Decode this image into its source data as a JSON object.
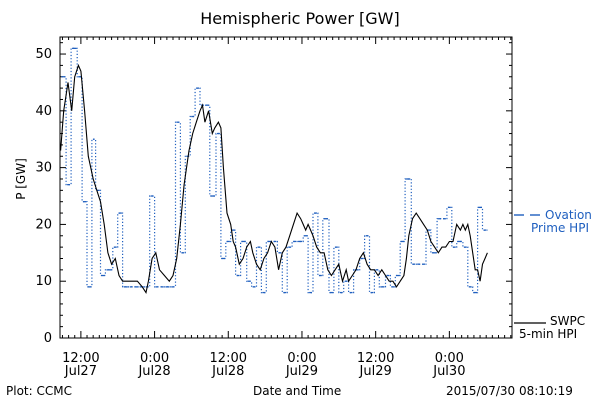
{
  "chart_data": {
    "type": "line",
    "title": "Hemispheric Power [GW]",
    "xlabel": "Date and Time",
    "ylabel": "P [GW]",
    "ylim": [
      0,
      53
    ],
    "y_ticks": [
      0,
      10,
      20,
      30,
      40,
      50
    ],
    "x_ticks": [
      {
        "time": "12:00",
        "date": "Jul27",
        "hours": 12
      },
      {
        "time": "0:00",
        "date": "Jul28",
        "hours": 24
      },
      {
        "time": "12:00",
        "date": "Jul28",
        "hours": 36
      },
      {
        "time": "0:00",
        "date": "Jul29",
        "hours": 48
      },
      {
        "time": "12:00",
        "date": "Jul29",
        "hours": 60
      },
      {
        "time": "0:00",
        "date": "Jul30",
        "hours": 72
      }
    ],
    "xlim_hours": [
      8.6,
      82.2
    ],
    "grid": false,
    "series": [
      {
        "name": "Ovation Prime HPI",
        "color": "#1f5fbf",
        "style": "dotted-step",
        "points": [
          [
            8.8,
            46
          ],
          [
            9.6,
            27
          ],
          [
            10.4,
            51
          ],
          [
            11.4,
            46
          ],
          [
            12.2,
            24
          ],
          [
            13.0,
            9
          ],
          [
            13.8,
            35
          ],
          [
            14.4,
            26
          ],
          [
            15.2,
            11
          ],
          [
            16.0,
            12
          ],
          [
            17.2,
            16
          ],
          [
            18.0,
            22
          ],
          [
            18.8,
            9
          ],
          [
            19.8,
            9
          ],
          [
            20.6,
            9
          ],
          [
            21.4,
            9
          ],
          [
            22.4,
            9
          ],
          [
            23.2,
            25
          ],
          [
            24.0,
            9
          ],
          [
            24.8,
            9
          ],
          [
            25.6,
            9
          ],
          [
            26.6,
            9
          ],
          [
            27.4,
            38
          ],
          [
            28.2,
            15
          ],
          [
            29.0,
            32
          ],
          [
            29.8,
            39
          ],
          [
            30.6,
            44
          ],
          [
            31.4,
            41
          ],
          [
            32.2,
            41
          ],
          [
            33.0,
            25
          ],
          [
            34.0,
            36
          ],
          [
            34.8,
            14
          ],
          [
            35.6,
            17
          ],
          [
            36.4,
            19
          ],
          [
            37.2,
            11
          ],
          [
            38.0,
            17
          ],
          [
            39.0,
            10
          ],
          [
            39.8,
            9
          ],
          [
            40.6,
            16
          ],
          [
            41.4,
            8
          ],
          [
            42.2,
            17
          ],
          [
            43.2,
            17
          ],
          [
            44.0,
            15
          ],
          [
            44.8,
            8
          ],
          [
            45.6,
            16
          ],
          [
            46.4,
            17
          ],
          [
            47.2,
            17
          ],
          [
            48.2,
            18
          ],
          [
            49.0,
            8
          ],
          [
            49.8,
            22
          ],
          [
            50.6,
            11
          ],
          [
            51.4,
            21
          ],
          [
            52.4,
            8
          ],
          [
            53.2,
            16
          ],
          [
            54.0,
            8
          ],
          [
            54.8,
            10
          ],
          [
            55.6,
            8
          ],
          [
            56.4,
            12
          ],
          [
            57.4,
            14
          ],
          [
            58.2,
            18
          ],
          [
            59.0,
            8
          ],
          [
            59.8,
            12
          ],
          [
            60.6,
            9
          ],
          [
            61.6,
            11
          ],
          [
            62.4,
            9
          ],
          [
            63.2,
            11
          ],
          [
            64.0,
            17
          ],
          [
            64.8,
            28
          ],
          [
            65.8,
            13
          ],
          [
            66.6,
            13
          ],
          [
            67.4,
            13
          ],
          [
            68.2,
            19
          ],
          [
            69.0,
            15
          ],
          [
            70.0,
            21
          ],
          [
            70.8,
            21
          ],
          [
            71.6,
            23
          ],
          [
            72.4,
            16
          ],
          [
            73.2,
            17
          ],
          [
            74.2,
            16
          ],
          [
            75.0,
            9
          ],
          [
            75.8,
            8
          ],
          [
            76.6,
            23
          ],
          [
            77.4,
            19
          ]
        ]
      },
      {
        "name": "SWPC 5-min HPI",
        "color": "#000000",
        "style": "solid",
        "points": [
          [
            8.7,
            33
          ],
          [
            9.2,
            40
          ],
          [
            9.9,
            45
          ],
          [
            10.5,
            40
          ],
          [
            11.0,
            46
          ],
          [
            11.6,
            48
          ],
          [
            12.0,
            47
          ],
          [
            12.6,
            40
          ],
          [
            13.2,
            32
          ],
          [
            14.0,
            28
          ],
          [
            14.6,
            26
          ],
          [
            15.2,
            24
          ],
          [
            15.8,
            20
          ],
          [
            16.4,
            15
          ],
          [
            17.0,
            13
          ],
          [
            17.6,
            14
          ],
          [
            18.2,
            11
          ],
          [
            18.8,
            10
          ],
          [
            19.6,
            10
          ],
          [
            20.4,
            10
          ],
          [
            21.2,
            10
          ],
          [
            22.0,
            9
          ],
          [
            22.6,
            8
          ],
          [
            23.0,
            10
          ],
          [
            23.6,
            14
          ],
          [
            24.2,
            15
          ],
          [
            24.8,
            12
          ],
          [
            25.6,
            11
          ],
          [
            26.4,
            10
          ],
          [
            27.0,
            11
          ],
          [
            27.6,
            14
          ],
          [
            28.2,
            20
          ],
          [
            28.8,
            27
          ],
          [
            29.6,
            33
          ],
          [
            30.2,
            36
          ],
          [
            30.8,
            38
          ],
          [
            31.4,
            40
          ],
          [
            31.8,
            41
          ],
          [
            32.2,
            38
          ],
          [
            32.8,
            40
          ],
          [
            33.4,
            36
          ],
          [
            33.8,
            37
          ],
          [
            34.4,
            38
          ],
          [
            34.8,
            37
          ],
          [
            35.2,
            30
          ],
          [
            35.8,
            22
          ],
          [
            36.4,
            20
          ],
          [
            36.8,
            17
          ],
          [
            37.2,
            16
          ],
          [
            37.8,
            13
          ],
          [
            38.4,
            14
          ],
          [
            39.0,
            16
          ],
          [
            39.6,
            17
          ],
          [
            40.0,
            15
          ],
          [
            40.6,
            13
          ],
          [
            41.2,
            12
          ],
          [
            41.8,
            14
          ],
          [
            42.4,
            15
          ],
          [
            43.0,
            17
          ],
          [
            43.6,
            16
          ],
          [
            44.2,
            12
          ],
          [
            44.8,
            15
          ],
          [
            45.4,
            16
          ],
          [
            46.0,
            18
          ],
          [
            46.6,
            20
          ],
          [
            47.2,
            22
          ],
          [
            47.8,
            21
          ],
          [
            48.2,
            20
          ],
          [
            48.6,
            19
          ],
          [
            49.0,
            20
          ],
          [
            49.4,
            19
          ],
          [
            49.8,
            18
          ],
          [
            50.4,
            16
          ],
          [
            51.0,
            15
          ],
          [
            51.6,
            15
          ],
          [
            52.2,
            12
          ],
          [
            52.8,
            11
          ],
          [
            53.4,
            12
          ],
          [
            54.0,
            13
          ],
          [
            54.6,
            10
          ],
          [
            55.2,
            12
          ],
          [
            55.6,
            10
          ],
          [
            56.2,
            11
          ],
          [
            56.8,
            12
          ],
          [
            57.4,
            14
          ],
          [
            58.0,
            15
          ],
          [
            58.6,
            13
          ],
          [
            59.2,
            12
          ],
          [
            59.8,
            12
          ],
          [
            60.4,
            11
          ],
          [
            61.0,
            12
          ],
          [
            61.6,
            11
          ],
          [
            62.2,
            10
          ],
          [
            62.8,
            10
          ],
          [
            63.4,
            9
          ],
          [
            64.0,
            10
          ],
          [
            64.6,
            11
          ],
          [
            65.0,
            14
          ],
          [
            65.4,
            18
          ],
          [
            66.0,
            21
          ],
          [
            66.6,
            22
          ],
          [
            67.2,
            21
          ],
          [
            67.8,
            20
          ],
          [
            68.4,
            19
          ],
          [
            69.0,
            17
          ],
          [
            69.6,
            16
          ],
          [
            70.2,
            15
          ],
          [
            70.8,
            16
          ],
          [
            71.4,
            16
          ],
          [
            72.0,
            17
          ],
          [
            72.6,
            17
          ],
          [
            73.2,
            20
          ],
          [
            73.8,
            19
          ],
          [
            74.2,
            20
          ],
          [
            74.6,
            19
          ],
          [
            75.0,
            20
          ],
          [
            75.4,
            18
          ],
          [
            75.8,
            15
          ],
          [
            76.2,
            12
          ],
          [
            76.6,
            12
          ],
          [
            77.0,
            10
          ],
          [
            77.4,
            13
          ],
          [
            77.8,
            14
          ],
          [
            78.2,
            15
          ]
        ]
      }
    ]
  },
  "legend": {
    "ovation_line1": "Ovation",
    "ovation_line2": "Prime HPI",
    "swpc_line1": "SWPC",
    "swpc_line2": "5-min HPI"
  },
  "footer": {
    "left": "Plot: CCMC",
    "right": "2015/07/30 08:10:19"
  }
}
